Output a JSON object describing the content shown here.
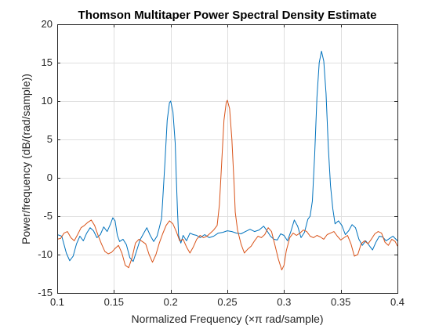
{
  "chart_data": {
    "type": "line",
    "title": "Thomson Multitaper Power Spectral Density Estimate",
    "xlabel": "Normalized Frequency  (×π rad/sample)",
    "ylabel": "Power/frequency (dB/(rad/sample))",
    "xlim": [
      0.1,
      0.4
    ],
    "ylim": [
      -15,
      20
    ],
    "xticks": [
      0.1,
      0.15,
      0.2,
      0.25,
      0.3,
      0.35,
      0.4
    ],
    "xtick_labels": [
      "0.1",
      "0.15",
      "0.2",
      "0.25",
      "0.3",
      "0.35",
      "0.4"
    ],
    "yticks": [
      -15,
      -10,
      -5,
      0,
      5,
      10,
      15,
      20
    ],
    "ytick_labels": [
      "-15",
      "-10",
      "-5",
      "0",
      "5",
      "10",
      "15",
      "20"
    ],
    "grid": true,
    "legend": "none",
    "series": [
      {
        "color": "#0072BD",
        "points": [
          [
            0.1,
            -7.4
          ],
          [
            0.104,
            -7.6
          ],
          [
            0.108,
            -9.8
          ],
          [
            0.111,
            -10.8
          ],
          [
            0.114,
            -10.2
          ],
          [
            0.117,
            -8.6
          ],
          [
            0.12,
            -7.6
          ],
          [
            0.123,
            -8.2
          ],
          [
            0.126,
            -7.2
          ],
          [
            0.129,
            -6.5
          ],
          [
            0.132,
            -6.9
          ],
          [
            0.135,
            -7.8
          ],
          [
            0.138,
            -7.4
          ],
          [
            0.141,
            -6.4
          ],
          [
            0.144,
            -7.0
          ],
          [
            0.147,
            -6.0
          ],
          [
            0.149,
            -5.2
          ],
          [
            0.151,
            -5.6
          ],
          [
            0.153,
            -7.5
          ],
          [
            0.155,
            -8.3
          ],
          [
            0.158,
            -8.0
          ],
          [
            0.161,
            -8.7
          ],
          [
            0.164,
            -10.4
          ],
          [
            0.167,
            -10.9
          ],
          [
            0.17,
            -9.5
          ],
          [
            0.173,
            -8.1
          ],
          [
            0.176,
            -7.3
          ],
          [
            0.179,
            -6.5
          ],
          [
            0.182,
            -7.5
          ],
          [
            0.185,
            -8.3
          ],
          [
            0.188,
            -7.6
          ],
          [
            0.19,
            -6.5
          ],
          [
            0.192,
            -5.3
          ],
          [
            0.193,
            -3.0
          ],
          [
            0.195,
            2.0
          ],
          [
            0.197,
            7.5
          ],
          [
            0.199,
            9.8
          ],
          [
            0.2,
            10.0
          ],
          [
            0.202,
            8.6
          ],
          [
            0.204,
            4.5
          ],
          [
            0.205,
            0.0
          ],
          [
            0.206,
            -4.0
          ],
          [
            0.207,
            -7.5
          ],
          [
            0.209,
            -8.5
          ],
          [
            0.211,
            -7.5
          ],
          [
            0.214,
            -8.2
          ],
          [
            0.217,
            -7.2
          ],
          [
            0.22,
            -7.4
          ],
          [
            0.223,
            -7.5
          ],
          [
            0.226,
            -7.8
          ],
          [
            0.23,
            -7.4
          ],
          [
            0.234,
            -7.8
          ],
          [
            0.238,
            -7.6
          ],
          [
            0.242,
            -7.2
          ],
          [
            0.246,
            -7.1
          ],
          [
            0.25,
            -6.9
          ],
          [
            0.254,
            -7.0
          ],
          [
            0.258,
            -7.2
          ],
          [
            0.262,
            -7.3
          ],
          [
            0.266,
            -7.0
          ],
          [
            0.27,
            -6.7
          ],
          [
            0.274,
            -7.0
          ],
          [
            0.278,
            -6.8
          ],
          [
            0.282,
            -6.3
          ],
          [
            0.285,
            -6.9
          ],
          [
            0.288,
            -7.6
          ],
          [
            0.291,
            -8.0
          ],
          [
            0.294,
            -8.1
          ],
          [
            0.297,
            -7.3
          ],
          [
            0.3,
            -7.5
          ],
          [
            0.303,
            -8.2
          ],
          [
            0.306,
            -7.0
          ],
          [
            0.309,
            -5.5
          ],
          [
            0.312,
            -6.3
          ],
          [
            0.315,
            -7.8
          ],
          [
            0.318,
            -7.1
          ],
          [
            0.321,
            -5.4
          ],
          [
            0.323,
            -5.0
          ],
          [
            0.325,
            -3.0
          ],
          [
            0.327,
            3.0
          ],
          [
            0.329,
            10.5
          ],
          [
            0.331,
            15.0
          ],
          [
            0.333,
            16.5
          ],
          [
            0.335,
            15.2
          ],
          [
            0.337,
            11.0
          ],
          [
            0.339,
            4.0
          ],
          [
            0.341,
            -1.0
          ],
          [
            0.343,
            -4.0
          ],
          [
            0.345,
            -6.0
          ],
          [
            0.348,
            -5.6
          ],
          [
            0.351,
            -6.2
          ],
          [
            0.354,
            -7.4
          ],
          [
            0.357,
            -6.9
          ],
          [
            0.36,
            -6.1
          ],
          [
            0.363,
            -6.5
          ],
          [
            0.366,
            -8.0
          ],
          [
            0.369,
            -8.8
          ],
          [
            0.372,
            -8.2
          ],
          [
            0.375,
            -8.8
          ],
          [
            0.378,
            -9.4
          ],
          [
            0.381,
            -8.4
          ],
          [
            0.384,
            -7.6
          ],
          [
            0.387,
            -7.7
          ],
          [
            0.39,
            -8.2
          ],
          [
            0.393,
            -7.9
          ],
          [
            0.396,
            -7.6
          ],
          [
            0.4,
            -8.2
          ]
        ]
      },
      {
        "color": "#D95319",
        "points": [
          [
            0.1,
            -8.0
          ],
          [
            0.103,
            -7.9
          ],
          [
            0.106,
            -7.2
          ],
          [
            0.109,
            -7.0
          ],
          [
            0.112,
            -7.8
          ],
          [
            0.115,
            -8.2
          ],
          [
            0.118,
            -7.4
          ],
          [
            0.121,
            -6.5
          ],
          [
            0.124,
            -6.2
          ],
          [
            0.127,
            -5.8
          ],
          [
            0.13,
            -5.5
          ],
          [
            0.133,
            -6.2
          ],
          [
            0.136,
            -7.5
          ],
          [
            0.139,
            -8.6
          ],
          [
            0.142,
            -9.6
          ],
          [
            0.145,
            -9.9
          ],
          [
            0.148,
            -9.7
          ],
          [
            0.151,
            -9.2
          ],
          [
            0.154,
            -8.8
          ],
          [
            0.157,
            -9.8
          ],
          [
            0.16,
            -11.4
          ],
          [
            0.163,
            -11.7
          ],
          [
            0.166,
            -10.4
          ],
          [
            0.169,
            -8.5
          ],
          [
            0.172,
            -8.0
          ],
          [
            0.175,
            -8.3
          ],
          [
            0.178,
            -8.6
          ],
          [
            0.181,
            -10.0
          ],
          [
            0.184,
            -11.0
          ],
          [
            0.187,
            -10.0
          ],
          [
            0.19,
            -8.5
          ],
          [
            0.193,
            -7.3
          ],
          [
            0.196,
            -6.2
          ],
          [
            0.199,
            -5.6
          ],
          [
            0.202,
            -6.0
          ],
          [
            0.205,
            -7.0
          ],
          [
            0.208,
            -8.2
          ],
          [
            0.211,
            -8.0
          ],
          [
            0.214,
            -9.0
          ],
          [
            0.217,
            -9.8
          ],
          [
            0.22,
            -9.0
          ],
          [
            0.223,
            -8.0
          ],
          [
            0.226,
            -7.5
          ],
          [
            0.229,
            -7.8
          ],
          [
            0.232,
            -7.6
          ],
          [
            0.235,
            -7.2
          ],
          [
            0.238,
            -6.8
          ],
          [
            0.241,
            -6.2
          ],
          [
            0.243,
            -3.5
          ],
          [
            0.245,
            2.0
          ],
          [
            0.247,
            7.5
          ],
          [
            0.249,
            9.8
          ],
          [
            0.25,
            10.1
          ],
          [
            0.252,
            9.0
          ],
          [
            0.254,
            5.0
          ],
          [
            0.256,
            -1.0
          ],
          [
            0.257,
            -4.5
          ],
          [
            0.259,
            -6.8
          ],
          [
            0.262,
            -8.6
          ],
          [
            0.265,
            -9.8
          ],
          [
            0.268,
            -9.3
          ],
          [
            0.271,
            -8.9
          ],
          [
            0.274,
            -8.2
          ],
          [
            0.277,
            -7.6
          ],
          [
            0.28,
            -7.8
          ],
          [
            0.283,
            -7.4
          ],
          [
            0.286,
            -6.5
          ],
          [
            0.289,
            -7.0
          ],
          [
            0.292,
            -8.8
          ],
          [
            0.295,
            -10.6
          ],
          [
            0.298,
            -12.0
          ],
          [
            0.3,
            -11.4
          ],
          [
            0.302,
            -9.5
          ],
          [
            0.305,
            -7.8
          ],
          [
            0.308,
            -7.2
          ],
          [
            0.311,
            -7.5
          ],
          [
            0.314,
            -7.2
          ],
          [
            0.317,
            -6.8
          ],
          [
            0.32,
            -7.0
          ],
          [
            0.323,
            -7.6
          ],
          [
            0.326,
            -7.8
          ],
          [
            0.329,
            -7.5
          ],
          [
            0.332,
            -7.7
          ],
          [
            0.335,
            -8.0
          ],
          [
            0.338,
            -7.4
          ],
          [
            0.341,
            -7.2
          ],
          [
            0.344,
            -7.0
          ],
          [
            0.347,
            -7.6
          ],
          [
            0.35,
            -8.1
          ],
          [
            0.353,
            -7.8
          ],
          [
            0.356,
            -7.5
          ],
          [
            0.359,
            -8.6
          ],
          [
            0.362,
            -10.2
          ],
          [
            0.365,
            -10.0
          ],
          [
            0.368,
            -8.6
          ],
          [
            0.371,
            -8.2
          ],
          [
            0.374,
            -8.6
          ],
          [
            0.377,
            -8.0
          ],
          [
            0.38,
            -7.3
          ],
          [
            0.383,
            -7.0
          ],
          [
            0.386,
            -7.2
          ],
          [
            0.389,
            -8.4
          ],
          [
            0.392,
            -8.8
          ],
          [
            0.395,
            -8.0
          ],
          [
            0.398,
            -8.3
          ],
          [
            0.4,
            -8.9
          ]
        ]
      }
    ]
  }
}
